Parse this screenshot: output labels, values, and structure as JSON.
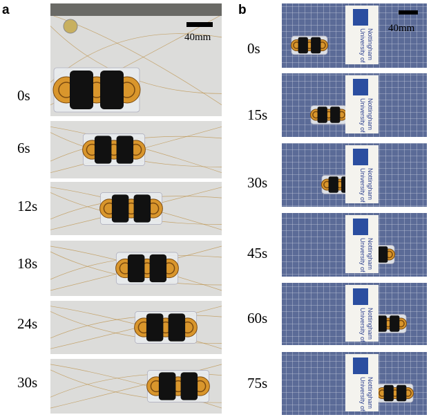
{
  "panel_a": {
    "label": "a",
    "scale_bar": "40mm",
    "frames": [
      "0s",
      "6s",
      "12s",
      "18s",
      "24s",
      "30s"
    ]
  },
  "panel_b": {
    "label": "b",
    "scale_bar": "40mm",
    "frames": [
      "0s",
      "15s",
      "30s",
      "45s",
      "60s",
      "75s"
    ],
    "card_lines": [
      "University of",
      "Nottingham"
    ]
  }
}
